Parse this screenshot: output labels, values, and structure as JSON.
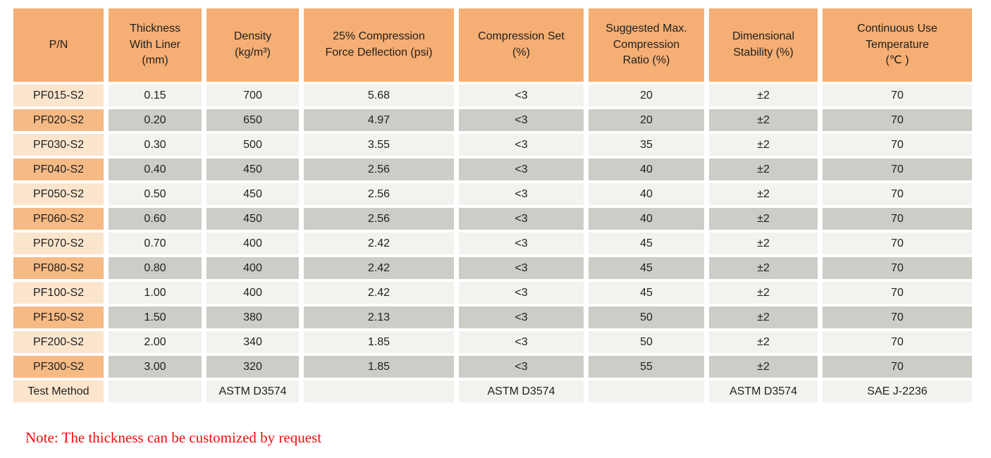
{
  "colors": {
    "header_bg": "#f5ae73",
    "pn_even_bg": "#f6ba85",
    "pn_odd_bg": "#fce5cd",
    "row_odd_bg": "#f2f2ee",
    "row_even_bg": "#cdcdc7",
    "note_text": "#f20d0d",
    "cell_text": "#1f1f1f"
  },
  "table": {
    "headers": [
      "P/N",
      "Thickness\nWith Liner\n(mm)",
      "Density\n(kg/m³)",
      "25% Compression\nForce Deflection (psi)",
      "Compression Set\n(%)",
      "Suggested Max.\nCompression\nRatio (%)",
      "Dimensional\nStability (%)",
      "Continuous Use\nTemperature\n(℃ )"
    ],
    "rows": [
      {
        "cells": [
          "PF015-S2",
          "0.15",
          "700",
          "5.68",
          "<3",
          "20",
          "±2",
          "70"
        ]
      },
      {
        "cells": [
          "PF020-S2",
          "0.20",
          "650",
          "4.97",
          "<3",
          "20",
          "±2",
          "70"
        ]
      },
      {
        "cells": [
          "PF030-S2",
          "0.30",
          "500",
          "3.55",
          "<3",
          "35",
          "±2",
          "70"
        ]
      },
      {
        "cells": [
          "PF040-S2",
          "0.40",
          "450",
          "2.56",
          "<3",
          "40",
          "±2",
          "70"
        ]
      },
      {
        "cells": [
          "PF050-S2",
          "0.50",
          "450",
          "2.56",
          "<3",
          "40",
          "±2",
          "70"
        ]
      },
      {
        "cells": [
          "PF060-S2",
          "0.60",
          "450",
          "2.56",
          "<3",
          "40",
          "±2",
          "70"
        ]
      },
      {
        "cells": [
          "PF070-S2",
          "0.70",
          "400",
          "2.42",
          "<3",
          "45",
          "±2",
          "70"
        ]
      },
      {
        "cells": [
          "PF080-S2",
          "0.80",
          "400",
          "2.42",
          "<3",
          "45",
          "±2",
          "70"
        ]
      },
      {
        "cells": [
          "PF100-S2",
          "1.00",
          "400",
          "2.42",
          "<3",
          "45",
          "±2",
          "70"
        ]
      },
      {
        "cells": [
          "PF150-S2",
          "1.50",
          "380",
          "2.13",
          "<3",
          "50",
          "±2",
          "70"
        ]
      },
      {
        "cells": [
          "PF200-S2",
          "2.00",
          "340",
          "1.85",
          "<3",
          "50",
          "±2",
          "70"
        ]
      },
      {
        "cells": [
          "PF300-S2",
          "3.00",
          "320",
          "1.85",
          "<3",
          "55",
          "±2",
          "70"
        ]
      },
      {
        "cells": [
          "Test Method",
          "",
          "ASTM D3574",
          "",
          "ASTM D3574",
          "",
          "ASTM D3574",
          "SAE J-2236"
        ]
      }
    ]
  },
  "note": "Note: The thickness can be customized by request"
}
